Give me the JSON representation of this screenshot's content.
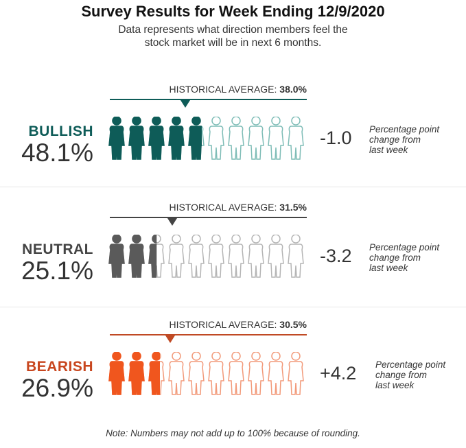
{
  "title": "Survey Results for Week Ending 12/9/2020",
  "subtitle_line1": "Data represents what direction members feel the",
  "subtitle_line2": "stock market will be in next 6 months.",
  "historical_label": "HISTORICAL AVERAGE:",
  "chart_data": {
    "type": "pictograph",
    "icons_total": 10,
    "series": [
      {
        "name": "BULLISH",
        "percent": 48.1,
        "percent_label": "48.1%",
        "historical_average": 38.0,
        "historical_label": "38.0%",
        "change": -1.0,
        "change_label": "-1.0",
        "change_note": "Percentage point change from last week",
        "color": "#0e5c58",
        "outline_color": "#7fbdb7"
      },
      {
        "name": "NEUTRAL",
        "percent": 25.1,
        "percent_label": "25.1%",
        "historical_average": 31.5,
        "historical_label": "31.5%",
        "change": -3.2,
        "change_label": "-3.2",
        "change_note": "Percentage point change from last week",
        "color": "#5a5a5a",
        "outline_color": "#b5b5b5"
      },
      {
        "name": "BEARISH",
        "percent": 26.9,
        "percent_label": "26.9%",
        "historical_average": 30.5,
        "historical_label": "30.5%",
        "change": 4.2,
        "change_label": "+4.2",
        "change_note": "Percentage point change from last week",
        "color": "#f0561e",
        "outline_color": "#f29a7a"
      }
    ]
  },
  "label_colors": [
    "#0e5c58",
    "#444444",
    "#c8461e"
  ],
  "note_line1": "Percentage point",
  "note_line2": "change from",
  "note_line3": "last week",
  "footnote": "Note: Numbers may not add up to 100% because of rounding."
}
